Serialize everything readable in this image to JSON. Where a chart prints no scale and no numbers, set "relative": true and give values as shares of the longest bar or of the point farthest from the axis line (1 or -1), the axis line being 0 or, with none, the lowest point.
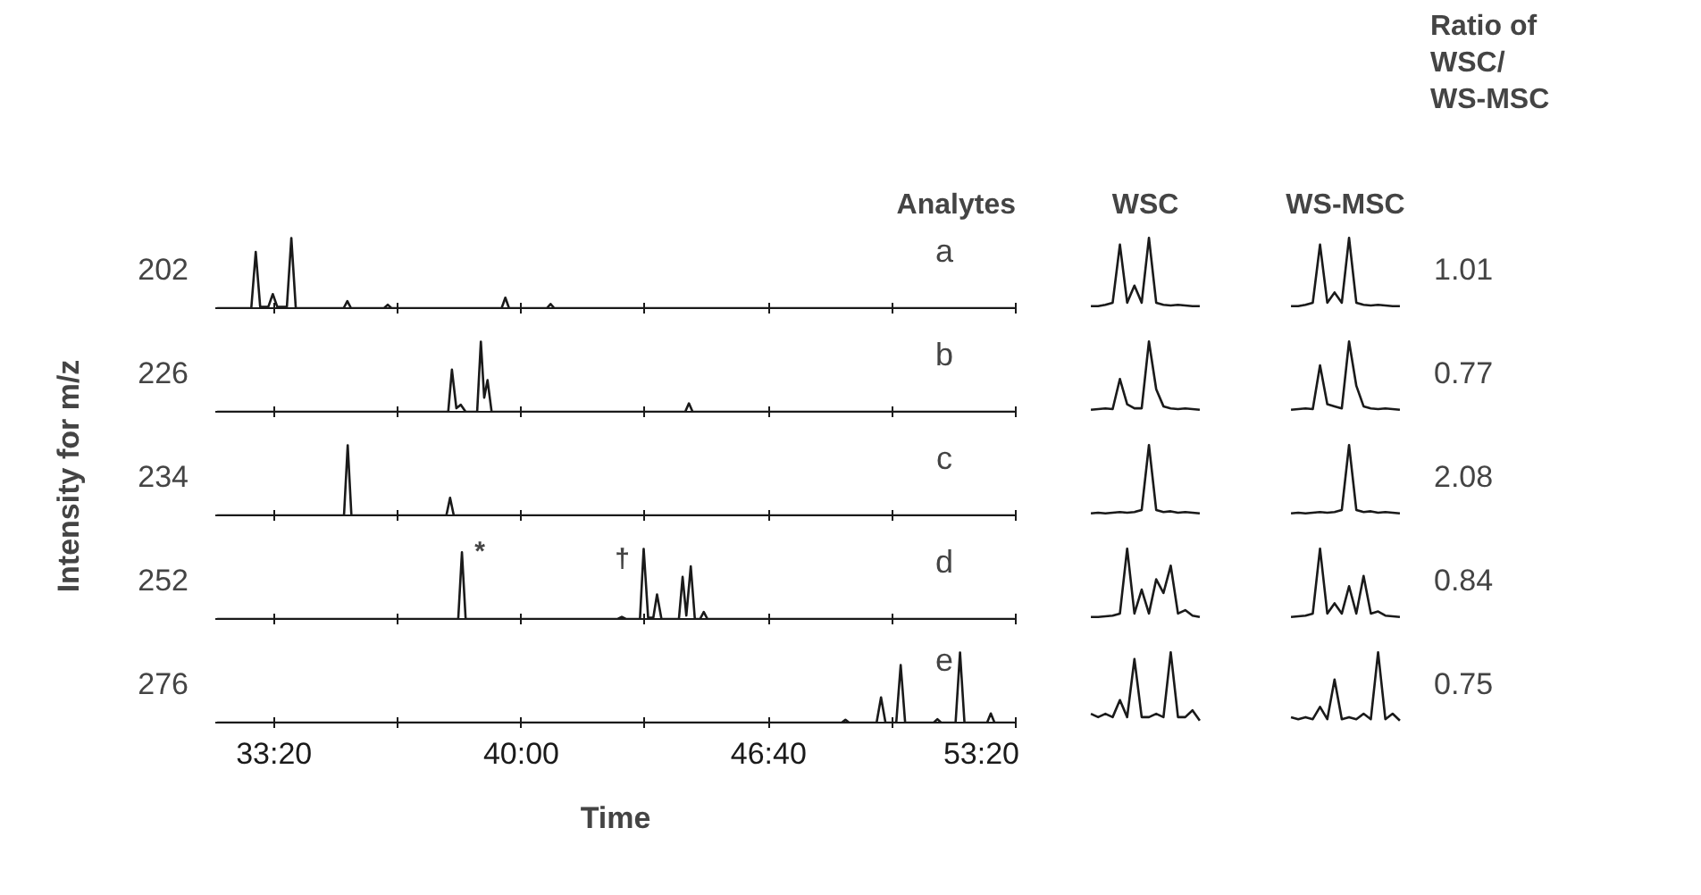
{
  "chart_data": [
    {
      "type": "line",
      "title": "Analytes",
      "ylabel": "Intensity for m/z",
      "relative": true,
      "tick_labels": false,
      "xlim": [
        31.75,
        53.333
      ],
      "xticks": [
        33.333,
        36.667,
        40,
        43.333,
        46.667,
        50,
        53.333
      ],
      "annotations": [
        "202",
        "a"
      ],
      "series": [
        {
          "color": "#1a1a1a",
          "x": [
            31.8,
            32.72,
            32.84,
            32.96,
            33.18,
            33.3,
            33.42,
            33.68,
            33.8,
            33.92,
            35.21,
            35.31,
            35.41,
            36.3,
            36.4,
            36.5,
            39.47,
            39.57,
            39.67,
            40.69,
            40.79,
            40.89,
            53.3
          ],
          "values": [
            0,
            0,
            0.8,
            0.02,
            0.02,
            0.2,
            0.02,
            0.02,
            1,
            0,
            0,
            0.1,
            0,
            0,
            0.05,
            0,
            0,
            0.15,
            0,
            0,
            0.06,
            0,
            0
          ]
        }
      ]
    },
    {
      "type": "line",
      "relative": true,
      "tick_labels": false,
      "xlim": [
        31.75,
        53.333
      ],
      "xticks": [
        33.333,
        36.667,
        40,
        43.333,
        46.667,
        50,
        53.333
      ],
      "annotations": [
        "226",
        "b"
      ],
      "series": [
        {
          "color": "#1a1a1a",
          "x": [
            31.8,
            38.03,
            38.13,
            38.25,
            38.37,
            38.5,
            38.81,
            38.91,
            39.0,
            39.09,
            39.2,
            44.42,
            44.52,
            44.62,
            53.3
          ],
          "values": [
            0,
            0,
            0.6,
            0.05,
            0.1,
            0,
            0,
            1,
            0.2,
            0.45,
            0,
            0,
            0.12,
            0,
            0
          ]
        }
      ]
    },
    {
      "type": "line",
      "relative": true,
      "tick_labels": false,
      "xlim": [
        31.75,
        53.333
      ],
      "xticks": [
        33.333,
        36.667,
        40,
        43.333,
        46.667,
        50,
        53.333
      ],
      "annotations": [
        "234",
        "c"
      ],
      "series": [
        {
          "color": "#1a1a1a",
          "x": [
            31.8,
            35.22,
            35.32,
            35.42,
            37.98,
            38.08,
            38.18,
            53.3
          ],
          "values": [
            0,
            0,
            1,
            0,
            0,
            0.25,
            0,
            0
          ]
        }
      ]
    },
    {
      "type": "line",
      "relative": true,
      "tick_labels": false,
      "xlim": [
        31.75,
        53.333
      ],
      "xticks": [
        33.333,
        36.667,
        40,
        43.333,
        46.667,
        50,
        53.333
      ],
      "annotations": [
        "252",
        "d",
        {
          "text": "*",
          "x": 38.4,
          "y": 0.95
        },
        {
          "text": "†",
          "x": 43.3,
          "y": 0.85
        }
      ],
      "series": [
        {
          "color": "#1a1a1a",
          "x": [
            31.8,
            38.3,
            38.4,
            38.5,
            42.6,
            42.71,
            42.82,
            43.2,
            43.3,
            43.42,
            43.56,
            43.66,
            43.78,
            44.25,
            44.35,
            44.45,
            44.57,
            44.68,
            44.82,
            44.92,
            45.02,
            53.3
          ],
          "values": [
            0,
            0,
            0.95,
            0,
            0,
            0.03,
            0,
            0,
            1,
            0.02,
            0.02,
            0.35,
            0,
            0,
            0.6,
            0.05,
            0.75,
            0,
            0,
            0.1,
            0,
            0
          ]
        }
      ]
    },
    {
      "type": "line",
      "xlabel": "Time",
      "relative": true,
      "tick_labels": "x",
      "xlim": [
        31.75,
        53.333
      ],
      "xticks": [
        {
          "value": 33.333,
          "label": "33:20"
        },
        {
          "value": 36.667,
          "label": null
        },
        {
          "value": 40,
          "label": "40:00"
        },
        {
          "value": 43.333,
          "label": null
        },
        {
          "value": 46.667,
          "label": "46:40"
        },
        {
          "value": 50,
          "label": null
        },
        {
          "value": 53.333,
          "label": "53:20"
        }
      ],
      "annotations": [
        "276",
        "e"
      ],
      "series": [
        {
          "color": "#1a1a1a",
          "x": [
            31.8,
            48.64,
            48.74,
            48.84,
            49.58,
            49.7,
            49.82,
            50.11,
            50.23,
            50.35,
            51.12,
            51.22,
            51.32,
            51.71,
            51.83,
            51.95,
            52.56,
            52.66,
            52.76,
            53.3
          ],
          "values": [
            0,
            0,
            0.04,
            0,
            0,
            0.36,
            0,
            0,
            0.82,
            0,
            0,
            0.05,
            0,
            0,
            1,
            0,
            0,
            0.13,
            0,
            0
          ]
        }
      ]
    },
    {
      "type": "line",
      "title": "WSC",
      "relative": true,
      "categories": [
        null,
        null,
        null,
        null,
        null,
        null,
        null,
        null,
        null,
        null,
        null,
        null,
        null,
        null,
        null,
        null
      ],
      "series": [
        {
          "color": "#1a1a1a",
          "values": [
            0,
            0,
            0.02,
            0.05,
            0.9,
            0.05,
            0.3,
            0.05,
            1,
            0.05,
            0.02,
            0.01,
            0.02,
            0.01,
            0,
            0
          ]
        }
      ]
    },
    {
      "type": "line",
      "relative": true,
      "categories": [
        null,
        null,
        null,
        null,
        null,
        null,
        null,
        null,
        null,
        null,
        null,
        null,
        null,
        null,
        null,
        null
      ],
      "series": [
        {
          "color": "#1a1a1a",
          "values": [
            0,
            0.01,
            0.02,
            0.01,
            0.45,
            0.08,
            0.02,
            0.02,
            1,
            0.3,
            0.05,
            0.02,
            0.01,
            0.02,
            0.01,
            0
          ]
        }
      ]
    },
    {
      "type": "line",
      "relative": true,
      "categories": [
        null,
        null,
        null,
        null,
        null,
        null,
        null,
        null,
        null,
        null,
        null,
        null,
        null,
        null,
        null,
        null
      ],
      "series": [
        {
          "color": "#1a1a1a",
          "values": [
            0,
            0.01,
            0,
            0.01,
            0.02,
            0.01,
            0.02,
            0.05,
            1,
            0.05,
            0.02,
            0.03,
            0.01,
            0.02,
            0.01,
            0
          ]
        }
      ]
    },
    {
      "type": "line",
      "relative": true,
      "categories": [
        null,
        null,
        null,
        null,
        null,
        null,
        null,
        null,
        null,
        null,
        null,
        null,
        null,
        null,
        null,
        null
      ],
      "series": [
        {
          "color": "#1a1a1a",
          "values": [
            0,
            0,
            0.01,
            0.02,
            0.05,
            1,
            0.05,
            0.4,
            0.05,
            0.55,
            0.35,
            0.75,
            0.05,
            0.1,
            0.02,
            0
          ]
        }
      ]
    },
    {
      "type": "line",
      "relative": true,
      "categories": [
        null,
        null,
        null,
        null,
        null,
        null,
        null,
        null,
        null,
        null,
        null,
        null,
        null,
        null,
        null,
        null
      ],
      "series": [
        {
          "color": "#1a1a1a",
          "values": [
            0.1,
            0.05,
            0.1,
            0.05,
            0.3,
            0.05,
            0.9,
            0.05,
            0.05,
            0.1,
            0.05,
            1,
            0.05,
            0.05,
            0.15,
            0
          ]
        }
      ]
    },
    {
      "type": "line",
      "title": "WS-MSC",
      "relative": true,
      "categories": [
        null,
        null,
        null,
        null,
        null,
        null,
        null,
        null,
        null,
        null,
        null,
        null,
        null,
        null,
        null,
        null
      ],
      "series": [
        {
          "color": "#1a1a1a",
          "values": [
            0,
            0,
            0.02,
            0.05,
            0.9,
            0.05,
            0.2,
            0.05,
            1,
            0.05,
            0.02,
            0.01,
            0.02,
            0.01,
            0,
            0
          ]
        }
      ]
    },
    {
      "type": "line",
      "relative": true,
      "categories": [
        null,
        null,
        null,
        null,
        null,
        null,
        null,
        null,
        null,
        null,
        null,
        null,
        null,
        null,
        null,
        null
      ],
      "series": [
        {
          "color": "#1a1a1a",
          "values": [
            0,
            0.01,
            0.02,
            0.01,
            0.65,
            0.08,
            0.05,
            0.02,
            1,
            0.35,
            0.05,
            0.02,
            0.01,
            0.02,
            0.01,
            0
          ]
        }
      ]
    },
    {
      "type": "line",
      "relative": true,
      "categories": [
        null,
        null,
        null,
        null,
        null,
        null,
        null,
        null,
        null,
        null,
        null,
        null,
        null,
        null,
        null,
        null
      ],
      "series": [
        {
          "color": "#1a1a1a",
          "values": [
            0,
            0.01,
            0,
            0.01,
            0.02,
            0.01,
            0.02,
            0.05,
            1,
            0.05,
            0.02,
            0.03,
            0.01,
            0.02,
            0.01,
            0
          ]
        }
      ]
    },
    {
      "type": "line",
      "relative": true,
      "categories": [
        null,
        null,
        null,
        null,
        null,
        null,
        null,
        null,
        null,
        null,
        null,
        null,
        null,
        null,
        null,
        null
      ],
      "series": [
        {
          "color": "#1a1a1a",
          "values": [
            0,
            0.01,
            0.02,
            0.05,
            1,
            0.05,
            0.2,
            0.05,
            0.45,
            0.05,
            0.6,
            0.05,
            0.08,
            0.02,
            0.01,
            0
          ]
        }
      ]
    },
    {
      "type": "line",
      "relative": true,
      "categories": [
        null,
        null,
        null,
        null,
        null,
        null,
        null,
        null,
        null,
        null,
        null,
        null,
        null,
        null,
        null,
        null
      ],
      "series": [
        {
          "color": "#1a1a1a",
          "values": [
            0.05,
            0.02,
            0.05,
            0.02,
            0.2,
            0.02,
            0.6,
            0.02,
            0.05,
            0.02,
            0.1,
            0.02,
            1,
            0.02,
            0.1,
            0
          ]
        }
      ]
    },
    {
      "type": "other",
      "title": "Ratio of\nWSC/\nWS-MSC",
      "annotations": [
        "1.01",
        "0.77",
        "2.08",
        "0.84",
        "0.75"
      ]
    }
  ]
}
